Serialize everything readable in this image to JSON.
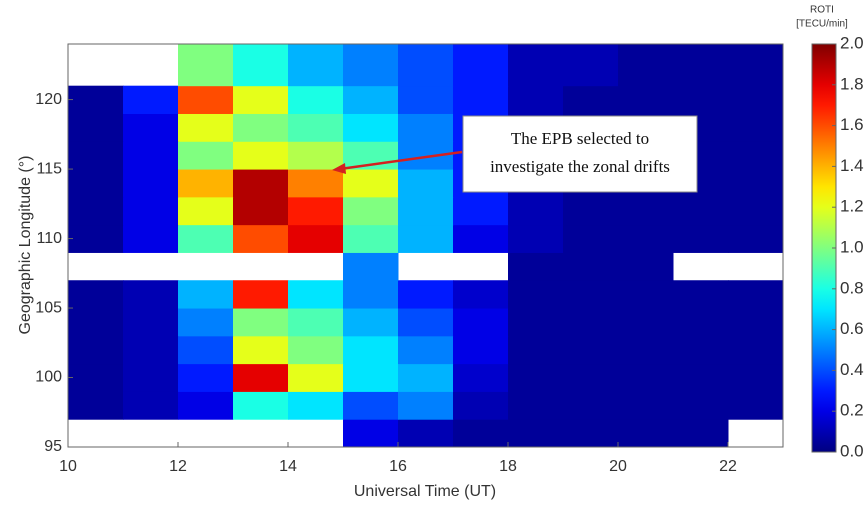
{
  "chart_data": {
    "type": "heatmap",
    "x_label": "Universal Time (UT)",
    "y_label": "Geographic Longitude (°)",
    "x_edges": [
      10,
      11,
      12,
      13,
      14,
      15,
      16,
      17,
      18,
      19,
      20,
      21,
      22,
      23
    ],
    "y_edges": [
      95,
      97,
      99,
      101,
      103,
      105,
      107,
      109,
      111,
      113,
      115,
      117,
      119,
      121,
      124
    ],
    "values": [
      [
        null,
        null,
        null,
        null,
        null,
        0.2,
        0.1,
        0.05,
        0.05,
        0.05,
        0.05,
        0.05,
        null
      ],
      [
        0.05,
        0.1,
        0.2,
        0.8,
        0.7,
        0.4,
        0.5,
        0.1,
        0.05,
        0.05,
        0.05,
        0.05,
        0.05
      ],
      [
        0.05,
        0.1,
        0.3,
        1.8,
        1.2,
        0.7,
        0.6,
        0.15,
        0.05,
        0.05,
        0.05,
        0.05,
        0.05
      ],
      [
        0.05,
        0.1,
        0.4,
        1.2,
        1.0,
        0.7,
        0.5,
        0.2,
        0.05,
        0.05,
        0.05,
        0.05,
        0.05
      ],
      [
        0.05,
        0.1,
        0.5,
        1.0,
        0.9,
        0.6,
        0.4,
        0.2,
        0.05,
        0.05,
        0.05,
        0.05,
        0.05
      ],
      [
        0.05,
        0.1,
        0.6,
        1.7,
        0.7,
        0.5,
        0.3,
        0.15,
        0.05,
        0.05,
        0.05,
        0.05,
        0.05
      ],
      [
        null,
        null,
        null,
        null,
        null,
        0.5,
        null,
        null,
        0.05,
        0.05,
        0.05,
        null,
        null
      ],
      [
        0.05,
        0.2,
        0.9,
        1.6,
        1.8,
        0.9,
        0.6,
        0.2,
        0.1,
        0.05,
        0.05,
        0.05,
        0.05
      ],
      [
        0.05,
        0.2,
        1.2,
        1.9,
        1.7,
        1.0,
        0.6,
        0.3,
        0.1,
        0.05,
        0.05,
        0.05,
        0.05
      ],
      [
        0.05,
        0.2,
        1.4,
        1.9,
        1.5,
        1.2,
        0.6,
        0.3,
        0.1,
        0.05,
        0.05,
        0.05,
        0.05
      ],
      [
        0.05,
        0.2,
        1.0,
        1.2,
        1.1,
        0.9,
        0.5,
        0.3,
        0.1,
        0.05,
        0.05,
        0.05,
        0.05
      ],
      [
        0.05,
        0.2,
        1.2,
        1.0,
        0.9,
        0.7,
        0.5,
        0.3,
        0.1,
        0.05,
        0.05,
        0.05,
        0.05
      ],
      [
        0.05,
        0.3,
        1.6,
        1.2,
        0.8,
        0.6,
        0.4,
        0.3,
        0.1,
        0.05,
        0.05,
        0.05,
        0.05
      ],
      [
        null,
        null,
        1.0,
        0.8,
        0.6,
        0.5,
        0.4,
        0.3,
        0.1,
        0.1,
        0.05,
        0.05,
        0.05
      ]
    ],
    "xlim": [
      10,
      23
    ],
    "ylim": [
      95,
      124
    ],
    "xticks": [
      10,
      12,
      14,
      16,
      18,
      20,
      22
    ],
    "yticks": [
      95,
      100,
      105,
      110,
      115,
      120
    ],
    "colormap": "jet",
    "zlim": [
      0,
      2
    ],
    "colorbar_title": [
      "ROTI",
      "[TECU/min]"
    ],
    "zticks": [
      {
        "value": 0,
        "label": "0.0"
      },
      0.2,
      0.4,
      0.6,
      0.8,
      {
        "value": 1,
        "label": "1.0"
      },
      1.2,
      1.4,
      1.6,
      1.8,
      {
        "value": 2,
        "label": "2.0"
      }
    ],
    "annotation": [
      "The EPB selected to",
      "investigate the zonal drifts"
    ]
  }
}
